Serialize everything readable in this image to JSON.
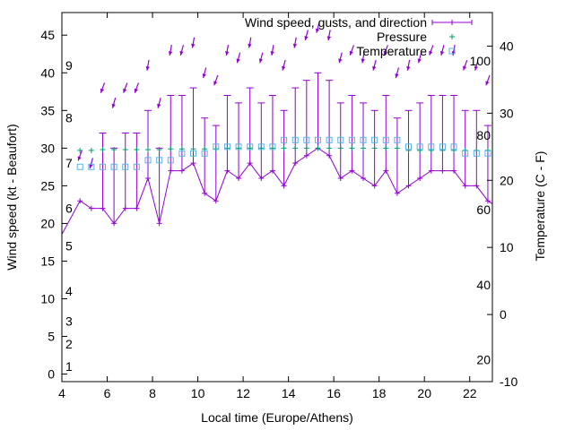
{
  "chart_data": {
    "type": "line",
    "title": "",
    "xlabel": "Local time (Europe/Athens)",
    "ylabel": "Wind speed (kt - Beaufort)",
    "y2label": "Temperature (C - F)",
    "xlim": [
      4,
      23
    ],
    "ylim": [
      -1,
      48
    ],
    "y2lim": [
      -10,
      45
    ],
    "grid": false,
    "legend_position": "top-right",
    "xticks": [
      4,
      6,
      8,
      10,
      12,
      14,
      16,
      18,
      20,
      22
    ],
    "yticks": [
      0,
      5,
      10,
      15,
      20,
      25,
      30,
      35,
      40,
      45
    ],
    "y2ticks": [
      -10,
      0,
      10,
      20,
      30,
      40
    ],
    "beaufort_labels": [
      {
        "label": "1",
        "y": 1
      },
      {
        "label": "2",
        "y": 4
      },
      {
        "label": "3",
        "y": 7
      },
      {
        "label": "4",
        "y": 11
      },
      {
        "label": "5",
        "y": 17
      },
      {
        "label": "6",
        "y": 22
      },
      {
        "label": "7",
        "y": 28
      },
      {
        "label": "8",
        "y": 34
      },
      {
        "label": "9",
        "y": 41
      }
    ],
    "fahrenheit_labels": [
      {
        "label": "20",
        "y2": -6.7
      },
      {
        "label": "40",
        "y2": 4.4
      },
      {
        "label": "60",
        "y2": 15.6
      },
      {
        "label": "80",
        "y2": 26.7
      },
      {
        "label": "100",
        "y2": 37.8
      }
    ],
    "colors": {
      "wind": "#9400d3",
      "pressure": "#009e73",
      "temperature": "#56b4e9"
    },
    "series": [
      {
        "name": "Wind speed, gusts, and direction",
        "kind": "errorbar",
        "x": [
          3.9,
          4.8,
          5.3,
          5.8,
          6.3,
          6.8,
          7.3,
          7.8,
          8.3,
          8.8,
          9.3,
          9.8,
          10.3,
          10.8,
          11.3,
          11.8,
          12.3,
          12.8,
          13.3,
          13.8,
          14.3,
          14.8,
          15.3,
          15.8,
          16.3,
          16.8,
          17.3,
          17.8,
          18.3,
          18.8,
          19.3,
          19.8,
          20.3,
          20.8,
          21.3,
          21.8,
          22.3,
          22.8,
          23.3
        ],
        "values": [
          18,
          23,
          22,
          22,
          20,
          22,
          22,
          26,
          20,
          27,
          27,
          28,
          24,
          23,
          27,
          26,
          28,
          26,
          27,
          25,
          28,
          29,
          30,
          29,
          26,
          27,
          26,
          25,
          27,
          24,
          25,
          26,
          27,
          27,
          27,
          25,
          25,
          23,
          22
        ],
        "gusts": [
          18,
          23,
          22,
          32,
          30,
          32,
          32,
          35,
          30,
          37,
          37,
          38,
          34,
          33,
          37,
          36,
          38,
          36,
          37,
          35,
          38,
          39,
          40,
          39,
          36,
          37,
          36,
          35,
          37,
          34,
          35,
          36,
          37,
          37,
          37,
          35,
          35,
          33,
          32
        ],
        "direction_deg": [
          0,
          20,
          15,
          20,
          15,
          20,
          20,
          10,
          15,
          10,
          15,
          10,
          15,
          20,
          10,
          15,
          10,
          15,
          10,
          15,
          10,
          15,
          15,
          10,
          15,
          20,
          10,
          15,
          20,
          15,
          10,
          15,
          20,
          15,
          10,
          20,
          15,
          20,
          15
        ]
      },
      {
        "name": "Pressure",
        "kind": "points",
        "x": [
          4.8,
          5.3,
          5.8,
          6.3,
          6.8,
          7.3,
          7.8,
          8.3,
          8.8,
          9.3,
          9.8,
          10.3,
          10.8,
          11.3,
          11.8,
          12.3,
          12.8,
          13.3,
          13.8,
          14.3,
          14.8,
          15.3,
          15.8,
          16.3,
          16.8,
          17.3,
          17.8,
          18.3,
          18.8,
          19.3,
          19.8,
          20.3,
          20.8,
          21.3,
          21.8,
          22.3,
          22.8
        ],
        "values": [
          29.7,
          29.7,
          29.8,
          29.8,
          29.8,
          29.8,
          29.8,
          29.8,
          29.9,
          29.9,
          29.9,
          29.9,
          29.9,
          30,
          30,
          30,
          30,
          30,
          30,
          30,
          30,
          30,
          30,
          30,
          30,
          30,
          30,
          30,
          30,
          29.7,
          29.7,
          29.7,
          29.7,
          29.7,
          29.7,
          29.7,
          29.7
        ]
      },
      {
        "name": "Temperature",
        "kind": "points",
        "axis": "y2",
        "x": [
          4.8,
          5.3,
          5.8,
          6.3,
          6.8,
          7.3,
          7.8,
          8.3,
          8.8,
          9.3,
          9.8,
          10.3,
          10.8,
          11.3,
          11.8,
          12.3,
          12.8,
          13.3,
          13.8,
          14.3,
          14.8,
          15.3,
          15.8,
          16.3,
          16.8,
          17.3,
          17.8,
          18.3,
          18.8,
          19.3,
          19.8,
          20.3,
          20.8,
          21.3,
          21.8,
          22.3,
          22.8
        ],
        "values": [
          22,
          22,
          22,
          22,
          22,
          22,
          23,
          23,
          23,
          24,
          24,
          24,
          25,
          25,
          25,
          25,
          25,
          25,
          26,
          26,
          26,
          26,
          26,
          26,
          26,
          26,
          26,
          26,
          26,
          25,
          25,
          25,
          25,
          25,
          24,
          24,
          24
        ]
      }
    ]
  }
}
